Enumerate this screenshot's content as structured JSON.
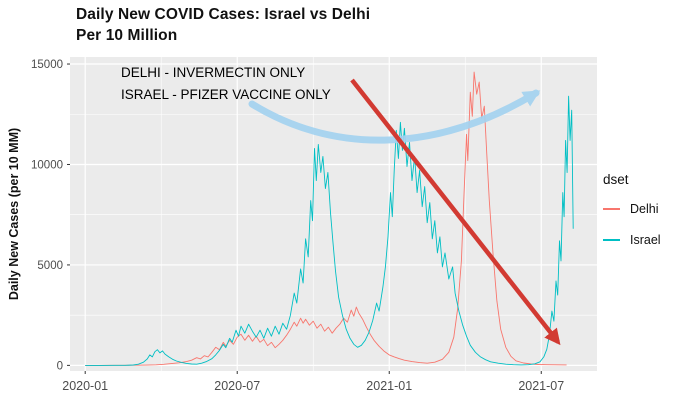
{
  "title": {
    "line1": "Daily New COVID Cases: Israel vs Delhi",
    "line2": "Per 10 Million"
  },
  "annotation": {
    "line1": "DELHI  - INVERMECTIN ONLY",
    "line2": "ISRAEL - PFIZER VACCINE ONLY",
    "red_arrow_color": "#d23a32",
    "blue_arrow_color": "#a2d2f0"
  },
  "legend": {
    "title": "dset",
    "entries": [
      {
        "label": "Delhi",
        "color": "#F8766D"
      },
      {
        "label": "Israel",
        "color": "#00BFC4"
      }
    ]
  },
  "chart_data": {
    "type": "line",
    "title": "Daily New COVID Cases: Israel vs Delhi Per 10 Million",
    "xlabel": "",
    "ylabel": "Daily New Cases (per 10 MM)",
    "x_unit": "months since 2020-01-01",
    "xlim": [
      -0.6,
      20.2
    ],
    "ylim": [
      -280,
      15350
    ],
    "panel_bg": "#EBEBEB",
    "grid_color": "#FFFFFF",
    "legend_position": "right",
    "x_major_ticks": [
      {
        "pos": 0,
        "label": "2020-01"
      },
      {
        "pos": 6,
        "label": "2020-07"
      },
      {
        "pos": 12,
        "label": "2021-01"
      },
      {
        "pos": 18,
        "label": "2021-07"
      }
    ],
    "x_minor_ticks": [
      3,
      9,
      15
    ],
    "y_major_ticks": [
      {
        "pos": 0,
        "label": "0"
      },
      {
        "pos": 5000,
        "label": "5000"
      },
      {
        "pos": 10000,
        "label": "10000"
      },
      {
        "pos": 15000,
        "label": "15000"
      }
    ],
    "y_minor_ticks": [
      2500,
      7500,
      12500
    ],
    "series": [
      {
        "name": "Delhi",
        "color": "#F8766D",
        "points": [
          [
            0,
            0
          ],
          [
            0.5,
            0
          ],
          [
            1,
            2
          ],
          [
            1.5,
            4
          ],
          [
            2,
            8
          ],
          [
            2.4,
            15
          ],
          [
            2.8,
            30
          ],
          [
            3.1,
            55
          ],
          [
            3.4,
            90
          ],
          [
            3.7,
            130
          ],
          [
            4,
            190
          ],
          [
            4.2,
            260
          ],
          [
            4.4,
            380
          ],
          [
            4.55,
            320
          ],
          [
            4.7,
            480
          ],
          [
            4.85,
            420
          ],
          [
            5,
            650
          ],
          [
            5.15,
            900
          ],
          [
            5.3,
            780
          ],
          [
            5.45,
            1150
          ],
          [
            5.55,
            950
          ],
          [
            5.7,
            1250
          ],
          [
            5.85,
            1050
          ],
          [
            6,
            1400
          ],
          [
            6.15,
            1550
          ],
          [
            6.3,
            1250
          ],
          [
            6.45,
            1500
          ],
          [
            6.6,
            1200
          ],
          [
            6.75,
            1450
          ],
          [
            6.9,
            1150
          ],
          [
            7.05,
            1300
          ],
          [
            7.2,
            980
          ],
          [
            7.35,
            1150
          ],
          [
            7.5,
            880
          ],
          [
            7.65,
            1050
          ],
          [
            7.8,
            1250
          ],
          [
            7.95,
            1500
          ],
          [
            8.1,
            1800
          ],
          [
            8.25,
            2150
          ],
          [
            8.35,
            1950
          ],
          [
            8.5,
            2350
          ],
          [
            8.6,
            2100
          ],
          [
            8.7,
            2300
          ],
          [
            8.85,
            2000
          ],
          [
            9,
            2200
          ],
          [
            9.15,
            1850
          ],
          [
            9.3,
            2050
          ],
          [
            9.45,
            1700
          ],
          [
            9.6,
            1900
          ],
          [
            9.75,
            1600
          ],
          [
            9.9,
            1850
          ],
          [
            10.05,
            2050
          ],
          [
            10.2,
            2350
          ],
          [
            10.35,
            2150
          ],
          [
            10.5,
            2750
          ],
          [
            10.6,
            2450
          ],
          [
            10.7,
            2900
          ],
          [
            10.8,
            2600
          ],
          [
            10.95,
            2300
          ],
          [
            11.1,
            1900
          ],
          [
            11.25,
            1550
          ],
          [
            11.4,
            1250
          ],
          [
            11.6,
            950
          ],
          [
            11.8,
            700
          ],
          [
            12,
            520
          ],
          [
            12.2,
            420
          ],
          [
            12.4,
            330
          ],
          [
            12.6,
            260
          ],
          [
            12.9,
            190
          ],
          [
            13.2,
            140
          ],
          [
            13.5,
            110
          ],
          [
            13.8,
            160
          ],
          [
            14.1,
            300
          ],
          [
            14.35,
            650
          ],
          [
            14.55,
            1400
          ],
          [
            14.7,
            2800
          ],
          [
            14.85,
            5200
          ],
          [
            14.95,
            8500
          ],
          [
            15.05,
            11500
          ],
          [
            15.1,
            10200
          ],
          [
            15.2,
            13600
          ],
          [
            15.28,
            12400
          ],
          [
            15.35,
            14600
          ],
          [
            15.45,
            13500
          ],
          [
            15.55,
            14100
          ],
          [
            15.65,
            12300
          ],
          [
            15.75,
            12900
          ],
          [
            15.85,
            10500
          ],
          [
            15.95,
            8200
          ],
          [
            16.1,
            5500
          ],
          [
            16.25,
            3200
          ],
          [
            16.4,
            1800
          ],
          [
            16.6,
            900
          ],
          [
            16.8,
            450
          ],
          [
            17,
            230
          ],
          [
            17.3,
            120
          ],
          [
            17.6,
            70
          ],
          [
            17.9,
            45
          ],
          [
            18.2,
            35
          ],
          [
            18.6,
            28
          ],
          [
            19,
            22
          ]
        ]
      },
      {
        "name": "Israel",
        "color": "#00BFC4",
        "points": [
          [
            0,
            0
          ],
          [
            0.6,
            0
          ],
          [
            1.2,
            2
          ],
          [
            1.6,
            6
          ],
          [
            1.9,
            20
          ],
          [
            2.1,
            60
          ],
          [
            2.3,
            160
          ],
          [
            2.45,
            320
          ],
          [
            2.55,
            520
          ],
          [
            2.65,
            420
          ],
          [
            2.75,
            680
          ],
          [
            2.85,
            780
          ],
          [
            2.95,
            620
          ],
          [
            3.05,
            720
          ],
          [
            3.15,
            560
          ],
          [
            3.3,
            420
          ],
          [
            3.45,
            300
          ],
          [
            3.6,
            220
          ],
          [
            3.8,
            150
          ],
          [
            4,
            100
          ],
          [
            4.2,
            70
          ],
          [
            4.4,
            60
          ],
          [
            4.6,
            110
          ],
          [
            4.8,
            200
          ],
          [
            5,
            330
          ],
          [
            5.15,
            520
          ],
          [
            5.3,
            750
          ],
          [
            5.45,
            1050
          ],
          [
            5.55,
            880
          ],
          [
            5.7,
            1350
          ],
          [
            5.8,
            1150
          ],
          [
            5.95,
            1750
          ],
          [
            6.05,
            1450
          ],
          [
            6.15,
            1950
          ],
          [
            6.3,
            1600
          ],
          [
            6.45,
            2050
          ],
          [
            6.6,
            1700
          ],
          [
            6.75,
            1400
          ],
          [
            6.9,
            1750
          ],
          [
            7.05,
            1350
          ],
          [
            7.2,
            1850
          ],
          [
            7.35,
            1450
          ],
          [
            7.5,
            1950
          ],
          [
            7.65,
            1550
          ],
          [
            7.8,
            2100
          ],
          [
            7.95,
            1800
          ],
          [
            8.1,
            2500
          ],
          [
            8.25,
            3600
          ],
          [
            8.35,
            3100
          ],
          [
            8.5,
            4800
          ],
          [
            8.6,
            4100
          ],
          [
            8.7,
            6300
          ],
          [
            8.8,
            5400
          ],
          [
            8.9,
            8200
          ],
          [
            8.97,
            7200
          ],
          [
            9.05,
            10800
          ],
          [
            9.12,
            9200
          ],
          [
            9.2,
            11000
          ],
          [
            9.3,
            9600
          ],
          [
            9.38,
            10400
          ],
          [
            9.48,
            8800
          ],
          [
            9.58,
            9600
          ],
          [
            9.68,
            7600
          ],
          [
            9.78,
            6100
          ],
          [
            9.88,
            4700
          ],
          [
            10,
            3400
          ],
          [
            10.15,
            2500
          ],
          [
            10.3,
            1800
          ],
          [
            10.45,
            1350
          ],
          [
            10.6,
            1050
          ],
          [
            10.75,
            900
          ],
          [
            10.9,
            1000
          ],
          [
            11.05,
            1250
          ],
          [
            11.2,
            1650
          ],
          [
            11.35,
            2250
          ],
          [
            11.5,
            3100
          ],
          [
            11.6,
            2700
          ],
          [
            11.75,
            3900
          ],
          [
            11.85,
            4900
          ],
          [
            11.95,
            6400
          ],
          [
            12.05,
            8600
          ],
          [
            12.12,
            7400
          ],
          [
            12.2,
            9800
          ],
          [
            12.28,
            11700
          ],
          [
            12.36,
            10300
          ],
          [
            12.44,
            12100
          ],
          [
            12.52,
            10700
          ],
          [
            12.6,
            11800
          ],
          [
            12.7,
            9900
          ],
          [
            12.8,
            11100
          ],
          [
            12.9,
            9200
          ],
          [
            13,
            10400
          ],
          [
            13.1,
            8600
          ],
          [
            13.2,
            9700
          ],
          [
            13.3,
            7900
          ],
          [
            13.4,
            8900
          ],
          [
            13.5,
            7100
          ],
          [
            13.6,
            8100
          ],
          [
            13.7,
            6300
          ],
          [
            13.8,
            7200
          ],
          [
            13.9,
            5600
          ],
          [
            14,
            6400
          ],
          [
            14.1,
            4900
          ],
          [
            14.2,
            5600
          ],
          [
            14.35,
            4300
          ],
          [
            14.5,
            4900
          ],
          [
            14.6,
            3600
          ],
          [
            14.75,
            2700
          ],
          [
            14.9,
            2000
          ],
          [
            15.05,
            1450
          ],
          [
            15.2,
            1000
          ],
          [
            15.4,
            650
          ],
          [
            15.6,
            420
          ],
          [
            15.8,
            280
          ],
          [
            16,
            180
          ],
          [
            16.3,
            110
          ],
          [
            16.6,
            60
          ],
          [
            16.9,
            35
          ],
          [
            17.2,
            22
          ],
          [
            17.5,
            35
          ],
          [
            17.75,
            80
          ],
          [
            17.95,
            180
          ],
          [
            18.1,
            420
          ],
          [
            18.22,
            800
          ],
          [
            18.32,
            1500
          ],
          [
            18.42,
            2700
          ],
          [
            18.5,
            2200
          ],
          [
            18.58,
            4200
          ],
          [
            18.65,
            3500
          ],
          [
            18.72,
            6200
          ],
          [
            18.78,
            5200
          ],
          [
            18.85,
            8600
          ],
          [
            18.9,
            7400
          ],
          [
            18.96,
            11200
          ],
          [
            19.02,
            9600
          ],
          [
            19.08,
            13400
          ],
          [
            19.14,
            11200
          ],
          [
            19.2,
            12700
          ],
          [
            19.26,
            6800
          ]
        ]
      }
    ]
  }
}
